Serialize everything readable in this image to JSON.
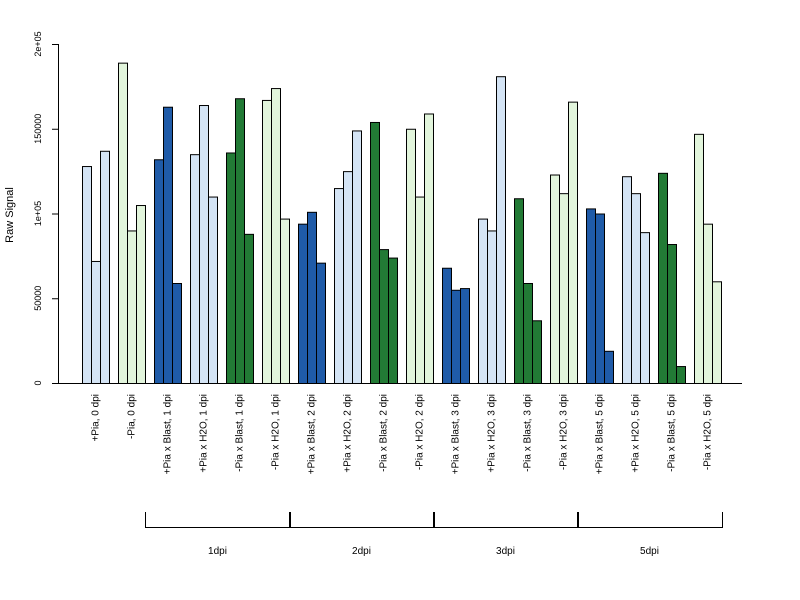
{
  "chart_data": {
    "type": "bar",
    "title": "",
    "xlabel": "",
    "ylabel": "Raw Signal",
    "ylim": [
      0,
      200000
    ],
    "y_ticks": [
      {
        "value": 0,
        "label": "0"
      },
      {
        "value": 50000,
        "label": "50000"
      },
      {
        "value": 100000,
        "label": "1e+05"
      },
      {
        "value": 150000,
        "label": "150000"
      },
      {
        "value": 200000,
        "label": "2e+05"
      }
    ],
    "grid": false,
    "legend": "none",
    "colors": {
      "light_blue": "#d4e4f5",
      "dark_blue": "#1f5ba8",
      "light_green": "#e2f5dc",
      "dark_green": "#227a35"
    },
    "groups": [
      {
        "label": "+Pia, 0 dpi",
        "color": "light_blue",
        "values": [
          128000,
          72000,
          137000
        ]
      },
      {
        "label": "-Pia, 0 dpi",
        "color": "light_green",
        "values": [
          189000,
          90000,
          105000
        ]
      },
      {
        "label": "+Pia x Blast, 1 dpi",
        "color": "dark_blue",
        "values": [
          132000,
          163000,
          59000
        ]
      },
      {
        "label": "+Pia x H2O, 1 dpi",
        "color": "light_blue",
        "values": [
          135000,
          164000,
          110000
        ]
      },
      {
        "label": "-Pia x Blast, 1 dpi",
        "color": "dark_green",
        "values": [
          136000,
          168000,
          88000
        ]
      },
      {
        "label": "-Pia x H2O, 1 dpi",
        "color": "light_green",
        "values": [
          167000,
          174000,
          97000
        ]
      },
      {
        "label": "+Pia x Blast, 2 dpi",
        "color": "dark_blue",
        "values": [
          94000,
          101000,
          71000
        ]
      },
      {
        "label": "+Pia x H2O, 2 dpi",
        "color": "light_blue",
        "values": [
          115000,
          125000,
          149000
        ]
      },
      {
        "label": "-Pia x Blast, 2 dpi",
        "color": "dark_green",
        "values": [
          154000,
          79000,
          74000
        ]
      },
      {
        "label": "-Pia x H2O, 2 dpi",
        "color": "light_green",
        "values": [
          150000,
          110000,
          159000
        ]
      },
      {
        "label": "+Pia x Blast, 3 dpi",
        "color": "dark_blue",
        "values": [
          68000,
          55000,
          56000
        ]
      },
      {
        "label": "+Pia x H2O, 3 dpi",
        "color": "light_blue",
        "values": [
          97000,
          90000,
          181000
        ]
      },
      {
        "label": "-Pia x Blast, 3 dpi",
        "color": "dark_green",
        "values": [
          109000,
          59000,
          37000
        ]
      },
      {
        "label": "-Pia x H2O, 3 dpi",
        "color": "light_green",
        "values": [
          123000,
          112000,
          166000
        ]
      },
      {
        "label": "+Pia x Blast, 5 dpi",
        "color": "dark_blue",
        "values": [
          103000,
          100000,
          19000
        ]
      },
      {
        "label": "+Pia x H2O, 5 dpi",
        "color": "light_blue",
        "values": [
          122000,
          112000,
          89000
        ]
      },
      {
        "label": "-Pia x Blast, 5 dpi",
        "color": "dark_green",
        "values": [
          124000,
          82000,
          10000
        ]
      },
      {
        "label": "-Pia x H2O, 5 dpi",
        "color": "light_green",
        "values": [
          147000,
          94000,
          60000
        ]
      }
    ],
    "time_brackets": [
      {
        "label": "1dpi",
        "from_group": 2,
        "to_group": 5
      },
      {
        "label": "2dpi",
        "from_group": 6,
        "to_group": 9
      },
      {
        "label": "3dpi",
        "from_group": 10,
        "to_group": 13
      },
      {
        "label": "5dpi",
        "from_group": 14,
        "to_group": 17
      }
    ]
  }
}
